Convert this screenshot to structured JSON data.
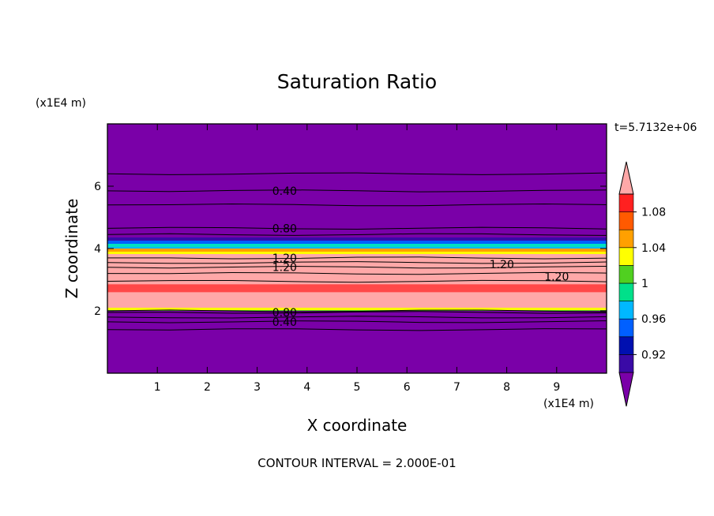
{
  "chart_data": {
    "type": "heatmap",
    "title": "Saturation Ratio",
    "xlabel": "X coordinate",
    "ylabel": "Z coordinate",
    "x_unit": "(x1E4 m)",
    "y_unit": "(x1E4 m)",
    "time_label": "t=5.7132e+06",
    "footer": "CONTOUR INTERVAL = 2.000E-01",
    "xlim": [
      0,
      10
    ],
    "ylim": [
      0,
      8
    ],
    "x_ticks": [
      "1",
      "2",
      "3",
      "4",
      "5",
      "6",
      "7",
      "8",
      "9"
    ],
    "y_ticks": [
      "2",
      "4",
      "6"
    ],
    "colorbar": {
      "labels": [
        "0.92",
        "0.96",
        "1",
        "1.04",
        "1.08"
      ],
      "levels": [
        0.9,
        0.92,
        0.94,
        0.96,
        0.98,
        1.0,
        1.02,
        1.04,
        1.06,
        1.08,
        1.1
      ],
      "colors": [
        "#7a00a8",
        "#3a0aa6",
        "#0010b0",
        "#0060ff",
        "#00b8ff",
        "#00e08a",
        "#50d020",
        "#ffff00",
        "#ffa000",
        "#ff5a00",
        "#ff2020",
        "#ffa8a8"
      ],
      "extend": "both"
    },
    "bands": [
      {
        "z_from": 0.0,
        "z_to": 2.0,
        "value": 0.4
      },
      {
        "z_from": 2.0,
        "z_to": 2.1,
        "value": 1.01
      },
      {
        "z_from": 2.1,
        "z_to": 2.7,
        "value": 1.1
      },
      {
        "z_from": 2.7,
        "z_to": 4.0,
        "value": 1.15
      },
      {
        "z_from": 4.0,
        "z_to": 4.3,
        "value": 0.97
      },
      {
        "z_from": 4.3,
        "z_to": 8.0,
        "value": 0.5
      }
    ],
    "contour_labels": [
      {
        "text": "0.40",
        "x": 3.55,
        "z": 5.85
      },
      {
        "text": "0.80",
        "x": 3.55,
        "z": 4.65
      },
      {
        "text": "1.20",
        "x": 3.55,
        "z": 3.7
      },
      {
        "text": "1.20",
        "x": 3.55,
        "z": 3.4
      },
      {
        "text": "1.20",
        "x": 7.9,
        "z": 3.5
      },
      {
        "text": "1.20",
        "x": 9.0,
        "z": 3.1
      },
      {
        "text": "0.80",
        "x": 3.55,
        "z": 1.95
      },
      {
        "text": "0.40",
        "x": 3.55,
        "z": 1.65
      }
    ]
  }
}
